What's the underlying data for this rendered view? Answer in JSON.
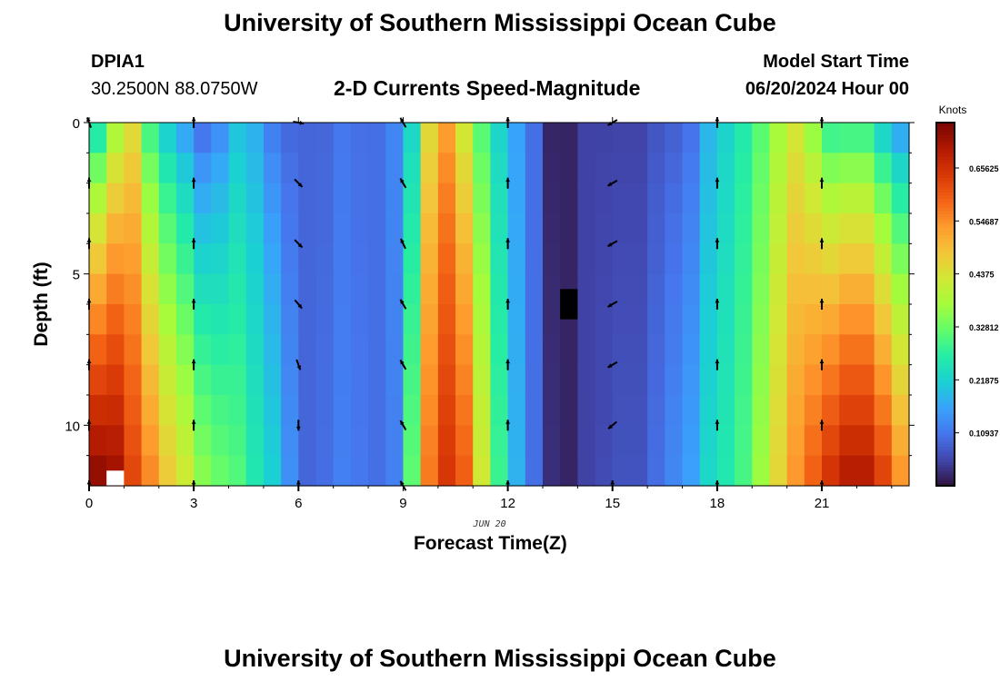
{
  "header": {
    "title": "University of Southern Mississippi Ocean Cube",
    "station_id": "DPIA1",
    "station_coords": "30.2500N  88.0750W",
    "plot_title": "2-D Currents Speed-Magnitude",
    "model_start_label": "Model Start Time",
    "model_start_value": "06/20/2024 Hour 00"
  },
  "footer": {
    "title": "University of Southern Mississippi Ocean Cube"
  },
  "chart_data": {
    "type": "heatmap",
    "title": "2-D Currents Speed-Magnitude",
    "xlabel": "Forecast Time(Z)",
    "ylabel": "Depth (ft)",
    "x_date_label": "JUN 20",
    "xlim": [
      0,
      23.5
    ],
    "ylim": [
      0,
      12
    ],
    "x_ticks": [
      0,
      3,
      6,
      9,
      12,
      15,
      18,
      21
    ],
    "y_ticks": [
      0,
      5,
      10
    ],
    "colorbar": {
      "unit": "Knots",
      "range": [
        0,
        0.75
      ],
      "ticks": [
        0.10937,
        0.21875,
        0.32812,
        0.4375,
        0.54687,
        0.65625
      ],
      "tick_labels": [
        "0.10937",
        "0.21875",
        "0.32812",
        "0.4375",
        "0.54687",
        "0.65625"
      ],
      "colors": [
        "#30123b",
        "#4145ab",
        "#4675ed",
        "#39a2fc",
        "#1bcfd4",
        "#24eca6",
        "#61fc6c",
        "#a4fc3b",
        "#d1e834",
        "#f3c63a",
        "#fe9b2d",
        "#f36315",
        "#d93806",
        "#b11901",
        "#7a0403"
      ]
    },
    "hours": [
      0,
      0.5,
      1,
      1.5,
      2,
      2.5,
      3,
      3.5,
      4,
      4.5,
      5,
      5.5,
      6,
      6.5,
      7,
      7.5,
      8,
      8.5,
      9,
      9.5,
      10,
      10.5,
      11,
      11.5,
      12,
      12.5,
      13,
      13.5,
      14,
      14.5,
      15,
      15.5,
      16,
      16.5,
      17,
      17.5,
      18,
      18.5,
      19,
      19.5,
      20,
      20.5,
      21,
      21.5,
      22,
      22.5,
      23
    ],
    "speed_surface": [
      0.21,
      0.35,
      0.43,
      0.27,
      0.19,
      0.14,
      0.08,
      0.12,
      0.19,
      0.17,
      0.11,
      0.09,
      0.09,
      0.09,
      0.11,
      0.1,
      0.1,
      0.13,
      0.22,
      0.44,
      0.52,
      0.41,
      0.3,
      0.22,
      0.16,
      0.1,
      0.02,
      0.02,
      0.05,
      0.05,
      0.05,
      0.05,
      0.07,
      0.08,
      0.1,
      0.18,
      0.22,
      0.26,
      0.31,
      0.37,
      0.42,
      0.34,
      0.25,
      0.25,
      0.25,
      0.18,
      0.13
    ],
    "speed_bottom": [
      0.74,
      0.72,
      0.63,
      0.56,
      0.48,
      0.43,
      0.36,
      0.33,
      0.31,
      0.26,
      0.22,
      0.14,
      0.09,
      0.1,
      0.12,
      0.11,
      0.1,
      0.12,
      0.32,
      0.57,
      0.65,
      0.6,
      0.43,
      0.29,
      0.18,
      0.1,
      0.03,
      0.02,
      0.05,
      0.06,
      0.07,
      0.07,
      0.1,
      0.13,
      0.16,
      0.23,
      0.26,
      0.3,
      0.37,
      0.46,
      0.54,
      0.6,
      0.66,
      0.7,
      0.7,
      0.64,
      0.55
    ],
    "missing_cells": [
      {
        "hour": 13.5,
        "depth_range": [
          5.5,
          6.5
        ],
        "color": "#000000"
      },
      {
        "hour": 0.5,
        "depth_range": [
          11.5,
          12
        ],
        "color": "#ffffff"
      }
    ],
    "vector_hours": [
      0,
      3,
      6,
      9,
      12,
      15,
      18,
      21
    ],
    "vector_depths": [
      0,
      2,
      4,
      6,
      8,
      10,
      12
    ],
    "vector_directions_deg": [
      [
        340,
        0,
        0,
        0,
        0,
        0,
        0
      ],
      [
        0,
        0,
        0,
        0,
        0,
        0,
        0
      ],
      [
        100,
        135,
        135,
        140,
        160,
        180,
        0
      ],
      [
        330,
        330,
        335,
        330,
        330,
        330,
        330
      ],
      [
        0,
        0,
        0,
        0,
        0,
        0,
        0
      ],
      [
        240,
        240,
        240,
        240,
        240,
        230,
        0
      ],
      [
        0,
        0,
        0,
        0,
        0,
        0,
        0
      ],
      [
        0,
        0,
        0,
        0,
        0,
        0,
        0
      ]
    ]
  }
}
